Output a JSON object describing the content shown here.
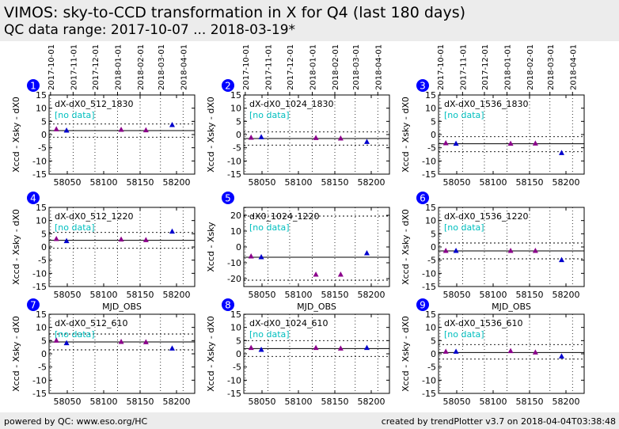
{
  "header": {
    "title": "VIMOS: sky-to-CCD transformation in X for Q4 (last 180 days)",
    "subtitle": "QC data range: 2017-10-07 ... 2018-03-19*"
  },
  "footer": {
    "left": "powered by QC: www.eso.org/HC",
    "right": "created by trendPlotter v3.7 on 2018-04-04T03:38:48"
  },
  "colors": {
    "purple": "#8b008b",
    "blue": "#0000cd",
    "cyan": "#00bfbf",
    "badge": "#0000ff"
  },
  "chart_data": {
    "type": "scatter",
    "x_label": "MJD_OBS",
    "x_range": [
      58025,
      58225
    ],
    "x_ticks": [
      58050,
      58100,
      58150,
      58200
    ],
    "date_ticks": [
      {
        "label": "2017-10-01",
        "mjd": 58027
      },
      {
        "label": "2017-11-01",
        "mjd": 58058
      },
      {
        "label": "2017-12-01",
        "mjd": 58088
      },
      {
        "label": "2018-01-01",
        "mjd": 58119
      },
      {
        "label": "2018-02-01",
        "mjd": 58150
      },
      {
        "label": "2018-03-01",
        "mjd": 58178
      },
      {
        "label": "2018-04-01",
        "mjd": 58209
      }
    ],
    "no_data_label": "[no data]",
    "panels": [
      {
        "id": "1",
        "name": "dX-dX0_512_1830",
        "ylabel": "Xccd - Xsky - dX0",
        "ylim": [
          -15,
          15
        ],
        "yticks": [
          -15,
          -10,
          -5,
          0,
          5,
          10,
          15
        ],
        "ref": 1.5,
        "band": [
          -1.0,
          4.0
        ],
        "xlabel": "",
        "points": [
          {
            "x": 58035,
            "y": 2.0,
            "c": "purple"
          },
          {
            "x": 58049,
            "y": 1.5,
            "c": "blue"
          },
          {
            "x": 58124,
            "y": 1.8,
            "c": "purple"
          },
          {
            "x": 58158,
            "y": 1.6,
            "c": "purple"
          },
          {
            "x": 58194,
            "y": 3.6,
            "c": "blue"
          }
        ]
      },
      {
        "id": "2",
        "name": "dX-dX0_1024_1830",
        "ylabel": "Xccd - Xsky - dX0",
        "ylim": [
          -15,
          15
        ],
        "yticks": [
          -15,
          -10,
          -5,
          0,
          5,
          10,
          15
        ],
        "ref": -1.5,
        "band": [
          -4.0,
          1.0
        ],
        "xlabel": "",
        "points": [
          {
            "x": 58035,
            "y": -1.2,
            "c": "purple"
          },
          {
            "x": 58049,
            "y": -1.0,
            "c": "blue"
          },
          {
            "x": 58124,
            "y": -1.3,
            "c": "purple"
          },
          {
            "x": 58158,
            "y": -1.5,
            "c": "purple"
          },
          {
            "x": 58194,
            "y": -2.8,
            "c": "blue"
          }
        ]
      },
      {
        "id": "3",
        "name": "dX-dX0_1536_1830",
        "ylabel": "Xccd - Xsky - dX0",
        "ylim": [
          -15,
          15
        ],
        "yticks": [
          -15,
          -10,
          -5,
          0,
          5,
          10,
          15
        ],
        "ref": -3.5,
        "band": [
          -6.5,
          -0.8
        ],
        "xlabel": "",
        "points": [
          {
            "x": 58035,
            "y": -3.3,
            "c": "purple"
          },
          {
            "x": 58049,
            "y": -3.5,
            "c": "blue"
          },
          {
            "x": 58124,
            "y": -3.5,
            "c": "purple"
          },
          {
            "x": 58158,
            "y": -3.4,
            "c": "purple"
          },
          {
            "x": 58194,
            "y": -7.0,
            "c": "blue"
          }
        ]
      },
      {
        "id": "4",
        "name": "dX-dX0_512_1220",
        "ylabel": "Xccd - Xsky - dX0",
        "ylim": [
          -15,
          15
        ],
        "yticks": [
          -15,
          -10,
          -5,
          0,
          5,
          10,
          15
        ],
        "ref": 2.5,
        "band": [
          -0.5,
          5.5
        ],
        "xlabel": "MJD_OBS",
        "points": [
          {
            "x": 58035,
            "y": 3.0,
            "c": "purple"
          },
          {
            "x": 58049,
            "y": 2.2,
            "c": "blue"
          },
          {
            "x": 58124,
            "y": 2.8,
            "c": "purple"
          },
          {
            "x": 58158,
            "y": 2.6,
            "c": "purple"
          },
          {
            "x": 58194,
            "y": 5.8,
            "c": "blue"
          }
        ]
      },
      {
        "id": "5",
        "name": "dX0_1024_1220",
        "ylabel": "Xccd - Xsky",
        "ylim": [
          -25,
          25
        ],
        "yticks": [
          -20,
          -10,
          0,
          10,
          20
        ],
        "ref": -6.5,
        "band": [
          -21.0,
          19.5
        ],
        "xlabel": "MJD_OBS",
        "points": [
          {
            "x": 58035,
            "y": -6.0,
            "c": "purple"
          },
          {
            "x": 58049,
            "y": -6.5,
            "c": "blue"
          },
          {
            "x": 58124,
            "y": -17.5,
            "c": "purple"
          },
          {
            "x": 58158,
            "y": -17.5,
            "c": "purple"
          },
          {
            "x": 58194,
            "y": -4.0,
            "c": "blue"
          }
        ]
      },
      {
        "id": "6",
        "name": "dX-dX0_1536_1220",
        "ylabel": "Xccd - Xsky - dX0",
        "ylim": [
          -15,
          15
        ],
        "yticks": [
          -15,
          -10,
          -5,
          0,
          5,
          10,
          15
        ],
        "ref": -1.5,
        "band": [
          -4.5,
          1.5
        ],
        "xlabel": "MJD_OBS",
        "points": [
          {
            "x": 58035,
            "y": -1.5,
            "c": "purple"
          },
          {
            "x": 58049,
            "y": -1.5,
            "c": "blue"
          },
          {
            "x": 58124,
            "y": -1.5,
            "c": "purple"
          },
          {
            "x": 58158,
            "y": -1.5,
            "c": "purple"
          },
          {
            "x": 58194,
            "y": -5.0,
            "c": "blue"
          }
        ]
      },
      {
        "id": "7",
        "name": "dX-dX0_512_610",
        "ylabel": "Xccd - Xsky - dX0",
        "ylim": [
          -15,
          15
        ],
        "yticks": [
          -15,
          -10,
          -5,
          0,
          5,
          10,
          15
        ],
        "ref": 4.5,
        "band": [
          1.5,
          7.5
        ],
        "xlabel": "",
        "points": [
          {
            "x": 58035,
            "y": 5.0,
            "c": "purple"
          },
          {
            "x": 58049,
            "y": 4.0,
            "c": "blue"
          },
          {
            "x": 58124,
            "y": 4.5,
            "c": "purple"
          },
          {
            "x": 58158,
            "y": 4.4,
            "c": "purple"
          },
          {
            "x": 58194,
            "y": 2.0,
            "c": "blue"
          }
        ]
      },
      {
        "id": "8",
        "name": "dX-dX0_1024_610",
        "ylabel": "Xccd - Xsky - dX0",
        "ylim": [
          -15,
          15
        ],
        "yticks": [
          -15,
          -10,
          -5,
          0,
          5,
          10,
          15
        ],
        "ref": 2.0,
        "band": [
          -1.0,
          5.0
        ],
        "xlabel": "",
        "points": [
          {
            "x": 58035,
            "y": 2.2,
            "c": "purple"
          },
          {
            "x": 58049,
            "y": 1.5,
            "c": "blue"
          },
          {
            "x": 58124,
            "y": 2.2,
            "c": "purple"
          },
          {
            "x": 58158,
            "y": 2.0,
            "c": "purple"
          },
          {
            "x": 58194,
            "y": 2.2,
            "c": "blue"
          }
        ]
      },
      {
        "id": "9",
        "name": "dX-dX0_1536_610",
        "ylabel": "Xccd - Xsky - dX0",
        "ylim": [
          -15,
          15
        ],
        "yticks": [
          -15,
          -10,
          -5,
          0,
          5,
          10,
          15
        ],
        "ref": 0.5,
        "band": [
          -2.0,
          3.5
        ],
        "xlabel": "",
        "points": [
          {
            "x": 58035,
            "y": 0.8,
            "c": "purple"
          },
          {
            "x": 58049,
            "y": 0.8,
            "c": "blue"
          },
          {
            "x": 58124,
            "y": 1.0,
            "c": "purple"
          },
          {
            "x": 58158,
            "y": 0.5,
            "c": "purple"
          },
          {
            "x": 58194,
            "y": -1.0,
            "c": "blue"
          }
        ]
      }
    ]
  }
}
